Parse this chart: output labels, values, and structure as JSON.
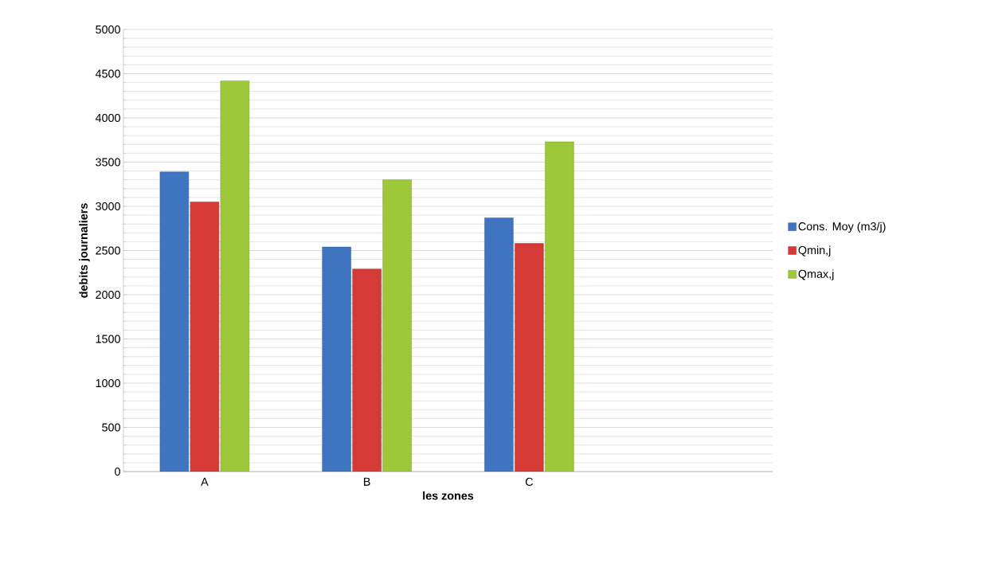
{
  "chart_data": {
    "type": "bar",
    "xlabel": "les zones",
    "ylabel": "debits journaliers",
    "categories": [
      "A",
      "B",
      "C",
      null
    ],
    "series": [
      {
        "name": "Cons. Moy (m3/j)",
        "color": "#3f74c0",
        "values": [
          3390,
          2540,
          2870,
          null
        ]
      },
      {
        "name": "Qmin,j",
        "color": "#d63a36",
        "values": [
          3050,
          2290,
          2580,
          null
        ]
      },
      {
        "name": "Qmax,j",
        "color": "#9cc83a",
        "values": [
          4420,
          3300,
          3730,
          null
        ]
      }
    ],
    "ylim": [
      0,
      5000
    ],
    "yticks": [
      0,
      500,
      1000,
      1500,
      2000,
      2500,
      3000,
      3500,
      4000,
      4500,
      5000
    ],
    "grid": "y",
    "legend": "right"
  }
}
